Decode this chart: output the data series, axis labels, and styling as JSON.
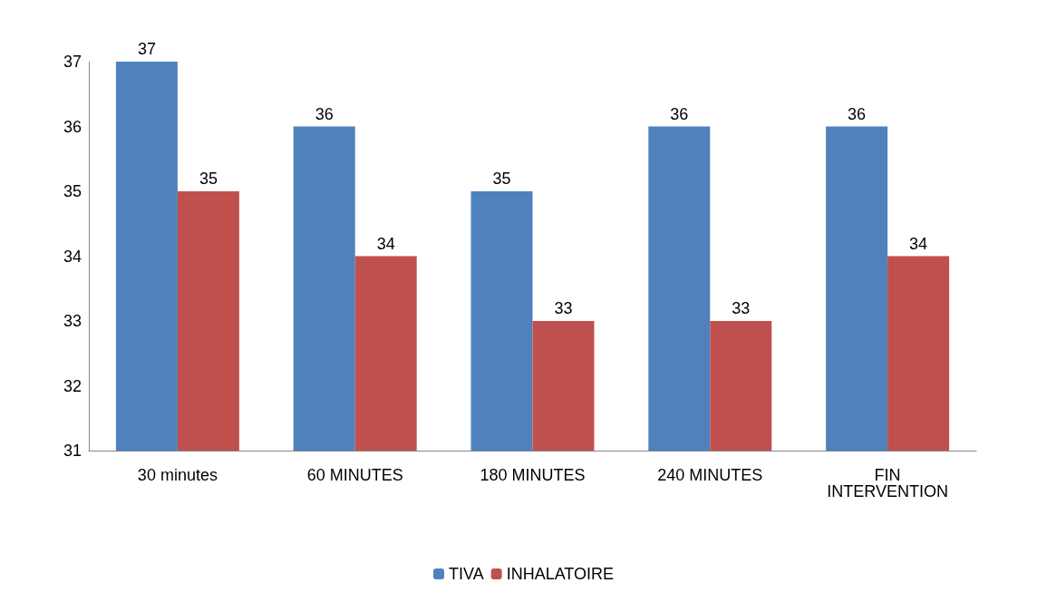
{
  "chart_data": {
    "type": "bar",
    "categories": [
      "30 minutes",
      "60 MINUTES",
      "180 MINUTES",
      "240 MINUTES",
      "FIN\nINTERVENTION"
    ],
    "series": [
      {
        "name": "TIVA",
        "color": "#4f81bd",
        "values": [
          37,
          36,
          35,
          36,
          36
        ]
      },
      {
        "name": "INHALATOIRE",
        "color": "#c0504d",
        "values": [
          35,
          34,
          33,
          33,
          34
        ]
      }
    ],
    "ylim": [
      31,
      37
    ],
    "yticks": [
      31,
      32,
      33,
      34,
      35,
      36,
      37
    ],
    "grid": false,
    "legend": "bottom",
    "data_labels": true
  }
}
